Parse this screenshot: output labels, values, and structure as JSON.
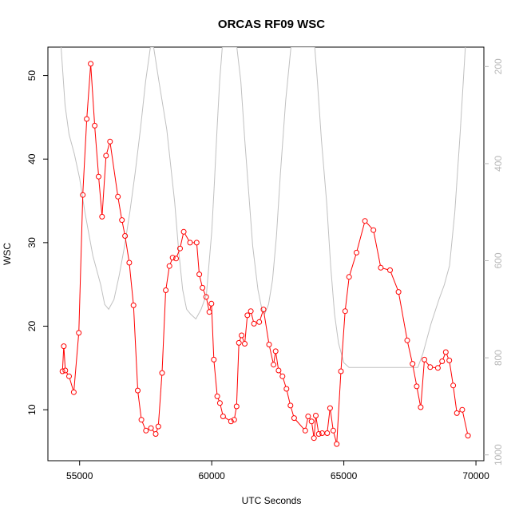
{
  "chart_data": {
    "type": "line",
    "title": "ORCAS RF09 WSC",
    "xlabel": "UTC Seconds",
    "ylabel": "WSC",
    "xlim": [
      53800,
      70300
    ],
    "ylim": [
      3.9,
      53.4
    ],
    "x_ticks": [
      55000,
      60000,
      65000,
      70000
    ],
    "x_tick_labels": [
      "55000",
      "60000",
      "65000",
      "70000"
    ],
    "y_ticks": [
      10,
      20,
      30,
      40,
      50
    ],
    "y_tick_labels": [
      "10",
      "20",
      "30",
      "40",
      "50"
    ],
    "y2_reversed": true,
    "y2lim": [
      1012,
      160
    ],
    "y2_ticks": [
      200,
      400,
      600,
      800,
      1000
    ],
    "y2_tick_labels": [
      "200",
      "400",
      "600",
      "800",
      "1000"
    ],
    "grid": false,
    "series": [
      {
        "color": "#ff0000",
        "marker": "open-circle",
        "axis": "left",
        "x": [
          54350,
          54400,
          54460,
          54600,
          54780,
          54970,
          55120,
          55270,
          55420,
          55570,
          55720,
          55850,
          56000,
          56150,
          56450,
          56600,
          56720,
          56880,
          57040,
          57200,
          57340,
          57510,
          57700,
          57880,
          57980,
          58120,
          58260,
          58400,
          58520,
          58650,
          58800,
          58940,
          59180,
          59430,
          59530,
          59650,
          59790,
          59910,
          59990,
          60080,
          60210,
          60310,
          60430,
          60730,
          60850,
          60940,
          61030,
          61130,
          61250,
          61350,
          61480,
          61600,
          61800,
          61960,
          62170,
          62340,
          62420,
          62530,
          62680,
          62830,
          62980,
          63120,
          63540,
          63650,
          63780,
          63870,
          63940,
          64050,
          64180,
          64370,
          64480,
          64600,
          64730,
          64890,
          65050,
          65200,
          65480,
          65800,
          66120,
          66400,
          66750,
          67070,
          67400,
          67600,
          67760,
          67910,
          68050,
          68270,
          68560,
          68720,
          68860,
          68990,
          69140,
          69280,
          69480,
          69700
        ],
        "y": [
          14.6,
          17.6,
          14.7,
          14.0,
          12.1,
          19.2,
          35.7,
          44.8,
          51.4,
          44.0,
          37.9,
          33.1,
          40.4,
          42.1,
          35.5,
          32.7,
          30.8,
          27.6,
          22.5,
          12.3,
          8.8,
          7.5,
          7.8,
          7.1,
          8.0,
          14.4,
          24.3,
          27.2,
          28.2,
          28.1,
          29.3,
          31.3,
          30.0,
          30.0,
          26.2,
          24.6,
          23.5,
          21.7,
          22.7,
          16.0,
          11.6,
          10.8,
          9.2,
          8.6,
          8.8,
          10.4,
          18.0,
          18.9,
          17.9,
          21.3,
          21.8,
          20.3,
          20.5,
          22.0,
          17.8,
          15.4,
          17.0,
          14.7,
          14.0,
          12.5,
          10.5,
          9.0,
          7.5,
          9.2,
          8.6,
          6.6,
          9.3,
          7.1,
          7.2,
          7.2,
          10.2,
          7.5,
          5.9,
          14.6,
          21.8,
          25.9,
          28.8,
          32.6,
          31.5,
          27.0,
          26.7,
          24.1,
          18.3,
          15.5,
          12.8,
          10.3,
          16.0,
          15.1,
          15.0,
          15.8,
          16.9,
          15.9,
          12.9,
          9.6,
          10.0,
          6.9
        ]
      },
      {
        "color": "#c0c0c0",
        "marker": "none",
        "axis": "right",
        "x": [
          54300,
          54450,
          54600,
          54800,
          55000,
          55200,
          55500,
          55800,
          55950,
          56100,
          56300,
          56500,
          56700,
          56900,
          57100,
          57300,
          57500,
          57680,
          57800,
          58000,
          58300,
          58600,
          58750,
          58900,
          59050,
          59200,
          59400,
          59600,
          59800,
          60000,
          60100,
          60200,
          60300,
          60400,
          60500,
          60650,
          60800,
          60950,
          61100,
          61250,
          61400,
          61550,
          61750,
          61900,
          62000,
          62150,
          62300,
          62450,
          62600,
          62800,
          63000,
          63150,
          63300,
          63450,
          63600,
          63750,
          63900,
          64000,
          64150,
          64350,
          64500,
          64650,
          64800,
          65000,
          65200,
          65500,
          66000,
          66500,
          67000,
          67400,
          67600,
          67800,
          68000,
          68300,
          68600,
          68800,
          69000,
          69200,
          69400,
          69600
        ],
        "y": [
          160,
          280,
          340,
          380,
          430,
          500,
          590,
          650,
          690,
          700,
          680,
          630,
          570,
          500,
          420,
          330,
          230,
          160,
          160,
          230,
          330,
          480,
          580,
          660,
          700,
          710,
          720,
          700,
          670,
          540,
          440,
          330,
          230,
          160,
          160,
          160,
          160,
          160,
          230,
          350,
          460,
          570,
          660,
          700,
          710,
          690,
          640,
          550,
          420,
          270,
          160,
          160,
          160,
          160,
          160,
          160,
          160,
          230,
          350,
          480,
          610,
          710,
          770,
          810,
          820,
          820,
          820,
          820,
          820,
          820,
          820,
          820,
          790,
          730,
          680,
          650,
          610,
          500,
          340,
          160
        ]
      }
    ]
  }
}
